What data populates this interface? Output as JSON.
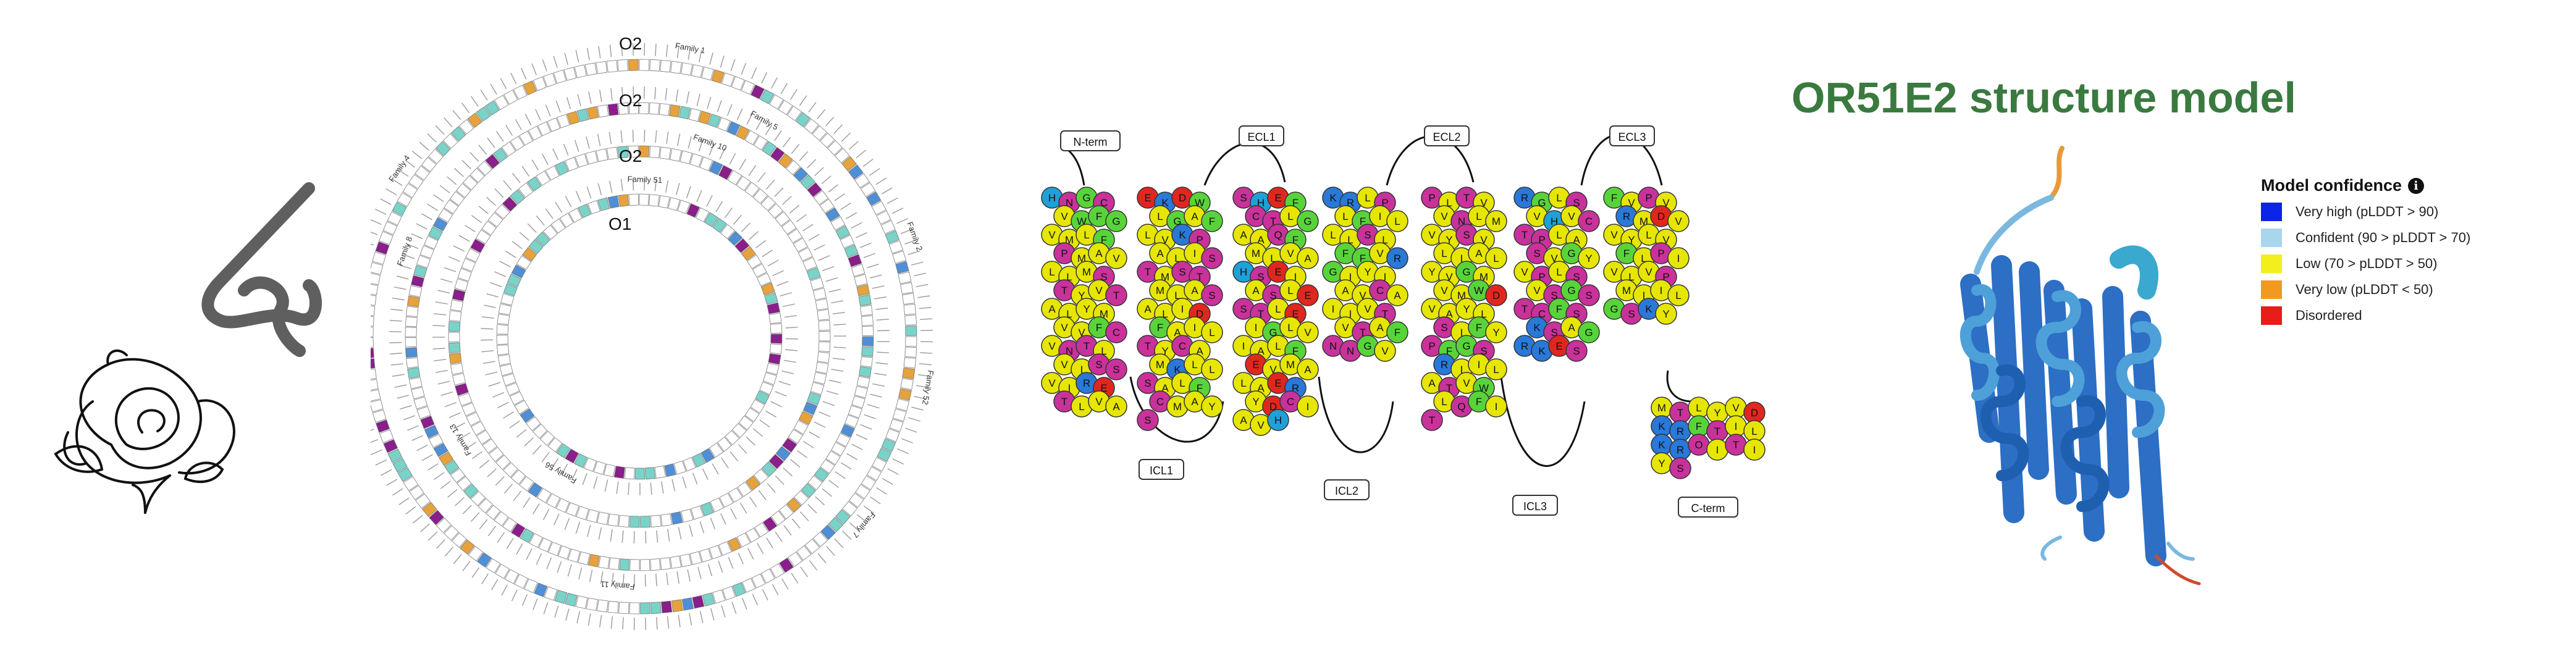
{
  "nose_panel": {
    "icons": [
      "nose-icon",
      "rose-icon"
    ]
  },
  "circos": {
    "ring_labels": [
      "O2",
      "O2",
      "O2",
      "O1"
    ],
    "family_labels": [
      "Family 1",
      "Family 5",
      "Family 10",
      "Family 51",
      "Family 2",
      "Family 52",
      "Family 7",
      "Family 11",
      "Family 13",
      "Family 6",
      "Family 8",
      "Family 4",
      "Family 56"
    ],
    "segment_colors": [
      "#7ad3c9",
      "#8a1e8a",
      "#e6a23c",
      "#4f8fd6",
      "#ffffff"
    ]
  },
  "topology": {
    "terminal_labels": [
      "N-term",
      "C-term"
    ],
    "loop_labels": [
      "ECL1",
      "ECL2",
      "ECL3",
      "ICL1",
      "ICL2",
      "ICL3"
    ],
    "helices": [
      [
        "H",
        "N",
        "G",
        "C",
        "V",
        "W",
        "F",
        "G",
        "V",
        "M",
        "L",
        "F",
        "P",
        "M",
        "A",
        "V",
        "L",
        "L",
        "M",
        "S",
        "T",
        "Y",
        "V",
        "T",
        "A",
        "L",
        "Y",
        "M",
        "V",
        "V",
        "F",
        "C",
        "V",
        "N",
        "T",
        "L",
        "V",
        "I",
        "S",
        "S",
        "V",
        "I",
        "R",
        "E",
        "T",
        "L",
        "V",
        "A"
      ],
      [
        "E",
        "K",
        "D",
        "W",
        "L",
        "G",
        "A",
        "F",
        "L",
        "V",
        "K",
        "P",
        "A",
        "L",
        "I",
        "S",
        "T",
        "M",
        "S",
        "T",
        "M",
        "L",
        "A",
        "S",
        "A",
        "L",
        "I",
        "D",
        "F",
        "A",
        "I",
        "L",
        "T",
        "Y",
        "C",
        "A",
        "M",
        "K",
        "L",
        "L",
        "S",
        "A",
        "L",
        "F",
        "C",
        "M",
        "A",
        "Y",
        "S"
      ],
      [
        "S",
        "H",
        "E",
        "F",
        "C",
        "T",
        "L",
        "G",
        "A",
        "A",
        "Q",
        "F",
        "M",
        "L",
        "V",
        "A",
        "H",
        "S",
        "E",
        "I",
        "A",
        "S",
        "L",
        "E",
        "S",
        "T",
        "L",
        "E",
        "I",
        "G",
        "L",
        "V",
        "I",
        "A",
        "L",
        "F",
        "E",
        "V",
        "M",
        "A",
        "L",
        "A",
        "E",
        "R",
        "Y",
        "D",
        "C",
        "I",
        "A",
        "V",
        "H"
      ],
      [
        "K",
        "R",
        "L",
        "P",
        "L",
        "F",
        "I",
        "L",
        "L",
        "L",
        "S",
        "L",
        "F",
        "F",
        "V",
        "R",
        "G",
        "I",
        "Y",
        "I",
        "A",
        "V",
        "C",
        "A",
        "I",
        "I",
        "V",
        "T",
        "V",
        "T",
        "A",
        "F",
        "N",
        "N",
        "G",
        "V"
      ],
      [
        "P",
        "L",
        "T",
        "V",
        "V",
        "N",
        "L",
        "M",
        "V",
        "Y",
        "S",
        "V",
        "L",
        "I",
        "A",
        "L",
        "Y",
        "V",
        "G",
        "M",
        "V",
        "M",
        "W",
        "D",
        "V",
        "A",
        "Y",
        "L",
        "S",
        "I",
        "F",
        "Y",
        "P",
        "F",
        "G",
        "S",
        "R",
        "I",
        "I",
        "L",
        "A",
        "T",
        "V",
        "W",
        "L",
        "Q",
        "F",
        "I",
        "T"
      ],
      [
        "R",
        "G",
        "L",
        "S",
        "V",
        "H",
        "V",
        "C",
        "T",
        "P",
        "L",
        "A",
        "S",
        "V",
        "G",
        "Y",
        "V",
        "P",
        "L",
        "S",
        "V",
        "S",
        "G",
        "S",
        "T",
        "C",
        "F",
        "S",
        "K",
        "S",
        "A",
        "G",
        "R",
        "K",
        "E",
        "S"
      ],
      [
        "F",
        "V",
        "P",
        "V",
        "R",
        "M",
        "D",
        "V",
        "V",
        "Y",
        "L",
        "V",
        "F",
        "L",
        "P",
        "I",
        "V",
        "L",
        "V",
        "P",
        "M",
        "I",
        "I",
        "L",
        "G",
        "S",
        "K",
        "Y"
      ],
      [
        "M",
        "T",
        "L",
        "Y",
        "V",
        "D",
        "K",
        "R",
        "F",
        "T",
        "I",
        "L",
        "K",
        "R",
        "O",
        "I",
        "T",
        "I",
        "Y",
        "S"
      ]
    ]
  },
  "model": {
    "title": "OR51E2 structure model",
    "legend_title": "Model confidence",
    "legend": [
      {
        "label": "Very high (pLDDT > 90)",
        "color": "#0b24e8"
      },
      {
        "label": "Confident (90 > pLDDT > 70)",
        "color": "#a8d6ec"
      },
      {
        "label": "Low (70 > pLDDT > 50)",
        "color": "#f2ef1d"
      },
      {
        "label": "Very low (pLDDT < 50)",
        "color": "#f29a1e"
      },
      {
        "label": "Disordered",
        "color": "#e81c18"
      }
    ]
  }
}
